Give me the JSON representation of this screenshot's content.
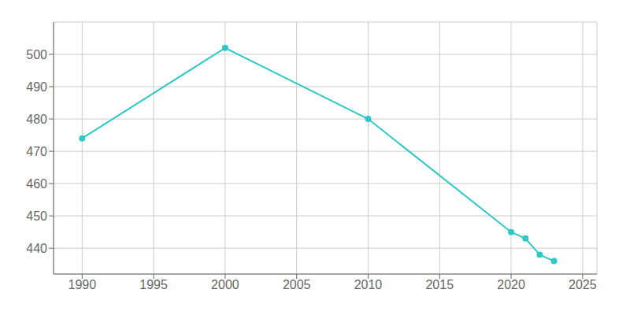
{
  "chart_data": {
    "type": "line",
    "x": [
      1990,
      2000,
      2010,
      2020,
      2021,
      2022,
      2023
    ],
    "values": [
      474,
      502,
      480,
      445,
      443,
      438,
      436
    ],
    "color": "#2EC8C8",
    "marker": "circle",
    "xlim": [
      1988,
      2026
    ],
    "ylim": [
      432,
      510
    ],
    "xticks": [
      1990,
      1995,
      2000,
      2005,
      2010,
      2015,
      2020,
      2025
    ],
    "yticks": [
      440,
      450,
      460,
      470,
      480,
      490,
      500
    ],
    "grid": true
  }
}
